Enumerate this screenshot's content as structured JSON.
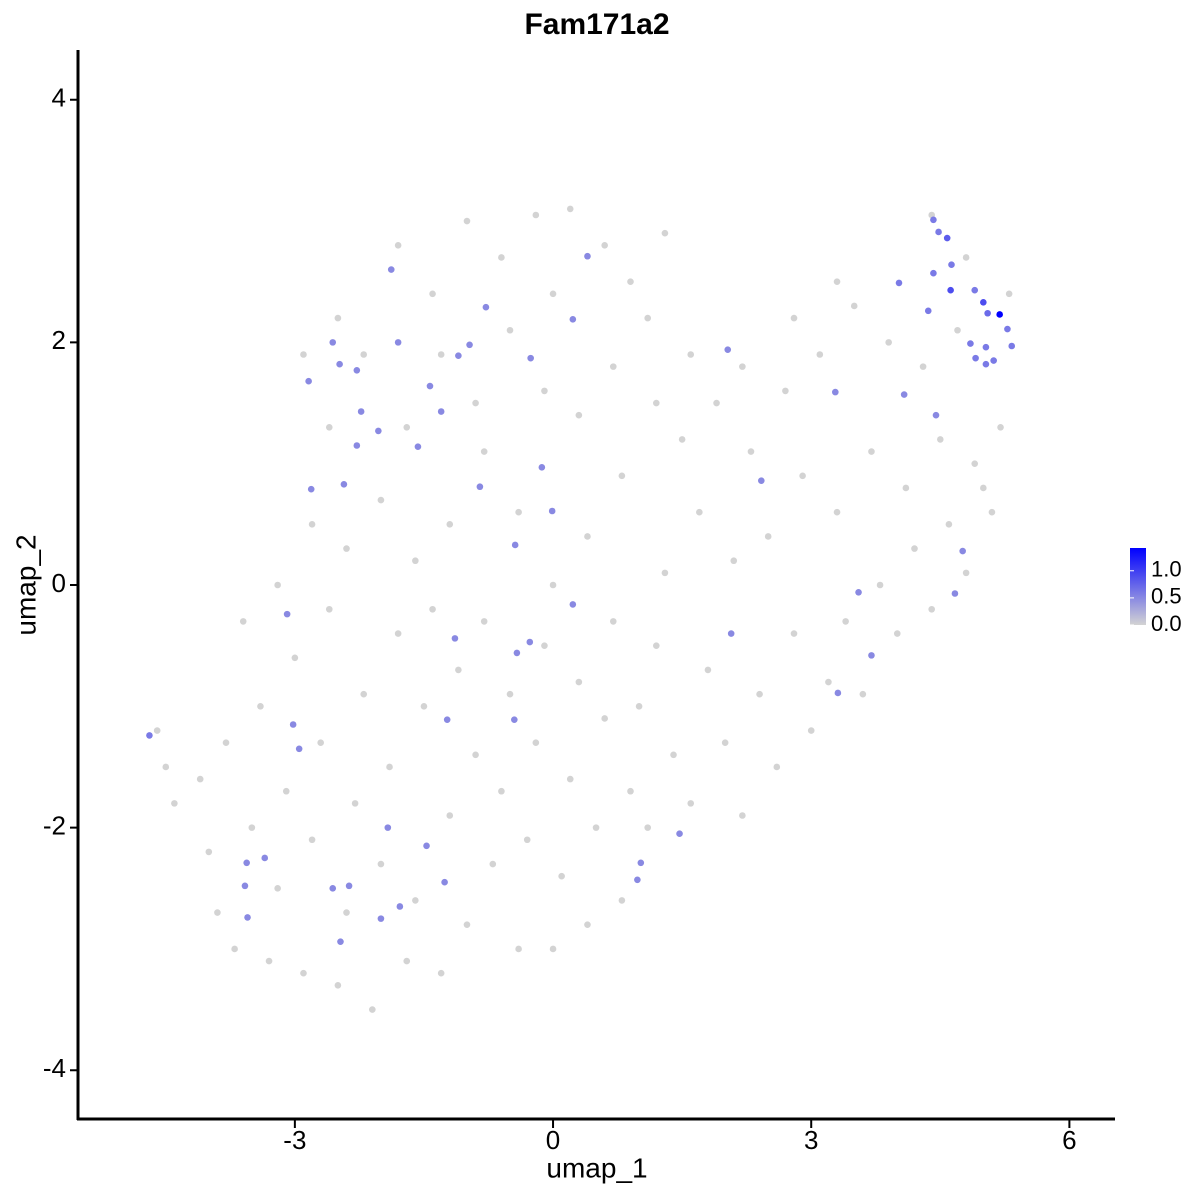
{
  "chart_data": {
    "type": "scatter",
    "title": "Fam171a2",
    "x_label": "umap_1",
    "y_label": "umap_2",
    "xlim": [
      -5.52,
      6.53
    ],
    "ylim": [
      -4.41,
      4.41
    ],
    "xticks": [
      -3,
      0,
      3,
      6
    ],
    "yticks": [
      -4,
      -2,
      0,
      2,
      4
    ],
    "low_color": "#d3d3d3",
    "high_color": "#0000ff",
    "colorlim": [
      0,
      1.42
    ],
    "colorticks": [
      {
        "value": 0,
        "label": "0.0"
      },
      {
        "value": 0.5,
        "label": "0.5"
      },
      {
        "value": 1.0,
        "label": "1.0"
      }
    ],
    "x": [
      -4.6,
      -4.5,
      -4.4,
      -4.1,
      -4.0,
      -3.9,
      -3.8,
      -3.7,
      -3.5,
      -3.4,
      -3.3,
      -3.2,
      -3.1,
      -3.0,
      -2.9,
      -2.8,
      -2.7,
      -2.6,
      -2.5,
      -2.4,
      -2.3,
      -2.2,
      -2.1,
      -2.0,
      -1.9,
      -1.8,
      -1.7,
      -1.6,
      -1.5,
      -1.4,
      -1.3,
      -1.2,
      -1.1,
      -1.0,
      -0.9,
      -0.8,
      -0.7,
      -0.6,
      -0.5,
      -0.4,
      -0.3,
      -0.2,
      -0.1,
      0.0,
      0.1,
      0.2,
      0.3,
      0.4,
      0.5,
      0.6,
      0.7,
      0.8,
      0.9,
      1.0,
      1.1,
      1.2,
      1.4,
      1.6,
      1.8,
      2.0,
      2.2,
      2.4,
      2.6,
      2.8,
      3.0,
      3.2,
      3.4,
      3.6,
      3.8,
      4.0,
      4.2,
      4.4,
      4.6,
      4.8,
      5.0,
      5.1,
      5.2,
      4.9,
      4.5,
      4.1,
      3.7,
      3.3,
      2.9,
      2.5,
      2.1,
      1.7,
      1.3,
      1.5,
      1.9,
      2.3,
      2.7,
      3.1,
      3.5,
      3.9,
      4.3,
      4.7,
      5.3,
      4.8,
      4.4,
      3.3,
      2.8,
      2.2,
      1.6,
      1.2,
      0.8,
      0.4,
      0.0,
      -0.4,
      -0.8,
      -1.2,
      -1.6,
      -2.0,
      -2.4,
      -2.8,
      -3.2,
      -3.6,
      -2.6,
      -2.2,
      -1.8,
      -1.4,
      -1.0,
      -0.6,
      -0.2,
      0.2,
      0.6,
      0.9,
      1.1,
      0.7,
      0.3,
      -0.1,
      -0.5,
      -0.9,
      -1.3,
      -1.7,
      -2.9,
      -2.5,
      0.0,
      1.3,
      -4.69,
      4.42,
      4.48,
      4.58,
      4.63,
      4.42,
      4.62,
      4.02,
      4.9,
      5.0,
      5.05,
      5.19,
      5.28,
      5.33,
      4.85,
      5.03,
      4.91,
      5.03,
      5.12,
      4.36,
      4.08,
      4.45,
      3.28,
      2.03,
      2.42,
      4.76,
      4.67,
      3.55,
      3.7,
      3.31,
      2.07,
      1.47,
      1.02,
      0.98,
      0.23,
      -0.27,
      -0.42,
      -0.45,
      -0.44,
      -0.01,
      -0.13,
      -0.85,
      -0.26,
      0.23,
      0.4,
      -0.78,
      -0.97,
      -1.1,
      -1.3,
      -1.43,
      -1.57,
      -1.8,
      -1.88,
      -2.03,
      -2.28,
      -2.23,
      -2.48,
      -2.56,
      -2.28,
      -2.84,
      -2.43,
      -2.81,
      -3.09,
      -1.14,
      -1.23,
      -3.02,
      -2.95,
      -1.47,
      -1.26,
      -1.92,
      -1.78,
      -2.0,
      -2.47,
      -2.37,
      -2.56,
      -3.35,
      -3.56,
      -3.58,
      -3.55
    ],
    "values": [
      -1.2,
      -1.5,
      -1.8,
      -1.6,
      -2.2,
      -2.7,
      -1.3,
      -3.0,
      -2.0,
      -1.0,
      -3.1,
      -2.5,
      -1.7,
      -0.6,
      -3.2,
      -2.1,
      -1.3,
      -0.2,
      -3.3,
      -2.7,
      -1.8,
      -0.9,
      -3.5,
      -2.3,
      -1.5,
      -0.4,
      -3.1,
      -2.6,
      -1.0,
      -0.2,
      -3.2,
      -1.9,
      -0.7,
      -2.8,
      -1.4,
      -0.3,
      -2.3,
      -1.7,
      -0.9,
      -3.0,
      -2.1,
      -1.3,
      -0.5,
      -3.0,
      -2.4,
      -1.6,
      -0.8,
      -2.8,
      -2.0,
      -1.1,
      -0.3,
      -2.6,
      -1.7,
      -1.0,
      -2.0,
      -0.5,
      -1.4,
      -1.8,
      -0.7,
      -1.3,
      -1.9,
      -0.9,
      -1.5,
      -0.4,
      -1.2,
      -0.8,
      -0.3,
      -0.9,
      0.0,
      -0.4,
      0.3,
      -0.2,
      0.5,
      0.1,
      0.8,
      0.6,
      1.3,
      1.0,
      1.2,
      0.8,
      1.1,
      0.6,
      0.9,
      0.4,
      0.2,
      0.6,
      0.1,
      1.2,
      1.5,
      1.1,
      1.6,
      1.9,
      2.3,
      2.0,
      1.8,
      2.1,
      2.4,
      2.7,
      3.05,
      2.5,
      2.2,
      1.8,
      1.9,
      1.5,
      0.9,
      0.4,
      0.0,
      0.6,
      1.1,
      0.5,
      0.2,
      0.7,
      0.3,
      0.5,
      0.0,
      -0.3,
      1.3,
      1.9,
      2.8,
      2.4,
      3.0,
      2.7,
      3.05,
      3.1,
      2.8,
      2.5,
      2.2,
      1.8,
      1.4,
      1.6,
      2.1,
      1.5,
      1.9,
      1.3,
      1.9,
      2.2,
      2.4,
      2.9,
      -1.24,
      3.01,
      2.91,
      2.86,
      2.64,
      2.57,
      2.43,
      2.49,
      2.43,
      2.33,
      2.24,
      2.23,
      2.11,
      1.97,
      1.99,
      1.96,
      1.87,
      1.82,
      1.85,
      2.26,
      1.57,
      1.4,
      1.59,
      1.94,
      0.86,
      0.28,
      -0.07,
      -0.06,
      -0.58,
      -0.89,
      -0.4,
      -2.05,
      -2.29,
      -2.43,
      -0.16,
      -0.47,
      -0.56,
      -1.11,
      0.33,
      0.61,
      0.97,
      0.81,
      1.87,
      2.19,
      2.71,
      2.29,
      1.98,
      1.89,
      1.43,
      1.64,
      1.14,
      2.0,
      2.6,
      1.27,
      1.15,
      1.43,
      1.82,
      2.0,
      1.77,
      1.68,
      0.83,
      0.79,
      -0.24,
      -0.44,
      -1.11,
      -1.15,
      -1.35,
      -2.15,
      -2.45,
      -2.0,
      -2.65,
      -2.75,
      -2.94,
      -2.48,
      -2.5,
      -2.25,
      -2.29,
      -2.48,
      -2.74
    ],
    "expression": [
      0,
      0,
      0,
      0,
      0,
      0,
      0,
      0,
      0,
      0,
      0,
      0,
      0,
      0,
      0,
      0,
      0,
      0,
      0,
      0,
      0,
      0,
      0,
      0,
      0,
      0,
      0,
      0,
      0,
      0,
      0,
      0,
      0,
      0,
      0,
      0,
      0,
      0,
      0,
      0,
      0,
      0,
      0,
      0,
      0,
      0,
      0,
      0,
      0,
      0,
      0,
      0,
      0,
      0,
      0,
      0,
      0,
      0,
      0,
      0,
      0,
      0,
      0,
      0,
      0,
      0,
      0,
      0,
      0,
      0,
      0,
      0,
      0,
      0,
      0,
      0,
      0,
      0,
      0,
      0,
      0,
      0,
      0,
      0,
      0,
      0,
      0,
      0,
      0,
      0,
      0,
      0,
      0,
      0,
      0,
      0,
      0,
      0,
      0,
      0,
      0,
      0,
      0,
      0,
      0,
      0,
      0,
      0,
      0,
      0,
      0,
      0,
      0,
      0,
      0,
      0,
      0,
      0,
      0,
      0,
      0,
      0,
      0,
      0,
      0,
      0,
      0,
      0,
      0,
      0,
      0,
      0,
      0,
      0,
      0,
      0,
      0,
      0,
      0.6,
      0.6,
      0.6,
      0.8,
      0.6,
      0.6,
      0.9,
      0.6,
      0.6,
      0.9,
      0.7,
      1.42,
      0.6,
      0.6,
      0.6,
      0.6,
      0.6,
      0.6,
      0.6,
      0.6,
      0.5,
      0.5,
      0.5,
      0.5,
      0.5,
      0.5,
      0.5,
      0.5,
      0.5,
      0.5,
      0.5,
      0.5,
      0.5,
      0.5,
      0.5,
      0.5,
      0.5,
      0.5,
      0.5,
      0.5,
      0.5,
      0.5,
      0.5,
      0.5,
      0.5,
      0.5,
      0.5,
      0.5,
      0.5,
      0.5,
      0.5,
      0.5,
      0.5,
      0.5,
      0.5,
      0.5,
      0.5,
      0.5,
      0.5,
      0.5,
      0.5,
      0.5,
      0.5,
      0.5,
      0.5,
      0.5,
      0.5,
      0.5,
      0.5,
      0.5,
      0.5,
      0.5,
      0.5,
      0.5,
      0.5,
      0.5,
      0.5,
      0.5,
      0.5
    ]
  }
}
